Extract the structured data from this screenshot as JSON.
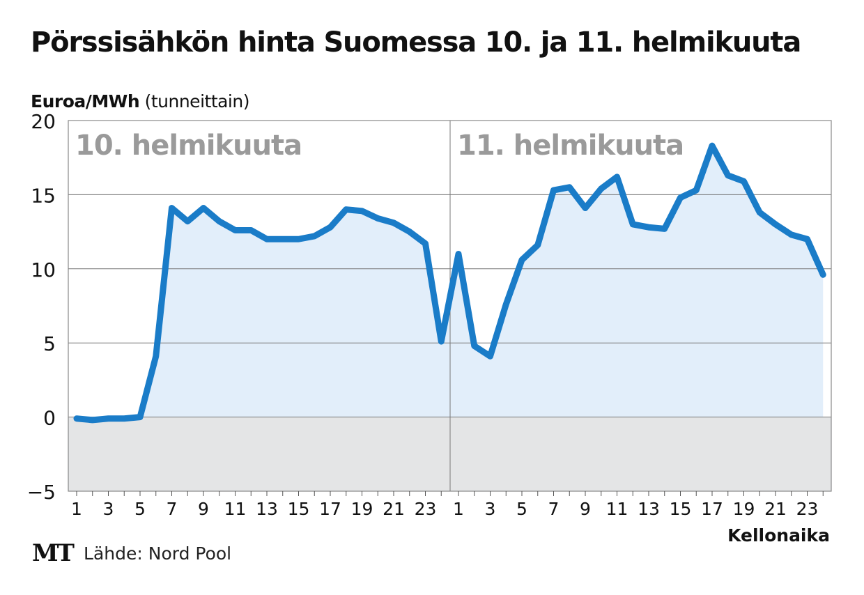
{
  "header": {
    "title": "Pörssisähkön hinta Suomessa 10. ja 11. helmikuuta",
    "unit_bold": "Euroa/MWh",
    "unit_note": "(tunneittain)"
  },
  "footer": {
    "logo": "MT",
    "source": "Lähde: Nord Pool"
  },
  "colors": {
    "line": "#1a7cc8",
    "area": "#e2eefa",
    "negative_band": "#e4e5e6",
    "grid": "#777777",
    "day_label": "#9a9a9a"
  },
  "chart_data": {
    "type": "area",
    "title": "Pörssisähkön hinta Suomessa 10. ja 11. helmikuuta",
    "ylabel": "Euroa/MWh (tunneittain)",
    "xlabel": "Kellonaika",
    "ylim": [
      -5,
      20
    ],
    "yticks": [
      -5,
      0,
      5,
      10,
      15,
      20
    ],
    "grid": true,
    "days": [
      {
        "label": "10. helmikuuta",
        "hours": [
          1,
          2,
          3,
          4,
          5,
          6,
          7,
          8,
          9,
          10,
          11,
          12,
          13,
          14,
          15,
          16,
          17,
          18,
          19,
          20,
          21,
          22,
          23,
          24
        ],
        "tick_labels": [
          "1",
          "3",
          "5",
          "7",
          "9",
          "11",
          "13",
          "15",
          "17",
          "19",
          "21",
          "23"
        ],
        "values": [
          -0.1,
          -0.2,
          -0.1,
          -0.1,
          0.0,
          4.1,
          14.1,
          13.2,
          14.1,
          13.2,
          12.6,
          12.6,
          12.0,
          12.0,
          12.0,
          12.2,
          12.8,
          14.0,
          13.9,
          13.4,
          13.1,
          12.5,
          11.7,
          5.1
        ]
      },
      {
        "label": "11. helmikuuta",
        "hours": [
          1,
          2,
          3,
          4,
          5,
          6,
          7,
          8,
          9,
          10,
          11,
          12,
          13,
          14,
          15,
          16,
          17,
          18,
          19,
          20,
          21,
          22,
          23,
          24
        ],
        "tick_labels": [
          "1",
          "3",
          "5",
          "7",
          "9",
          "11",
          "13",
          "15",
          "17",
          "19",
          "21",
          "23"
        ],
        "values": [
          11.0,
          4.8,
          4.1,
          7.6,
          10.6,
          11.6,
          15.3,
          15.5,
          14.1,
          15.4,
          16.2,
          13.0,
          12.8,
          12.7,
          14.8,
          15.3,
          18.3,
          16.3,
          15.9,
          13.8,
          13.0,
          12.3,
          12.0,
          9.6
        ]
      }
    ]
  }
}
